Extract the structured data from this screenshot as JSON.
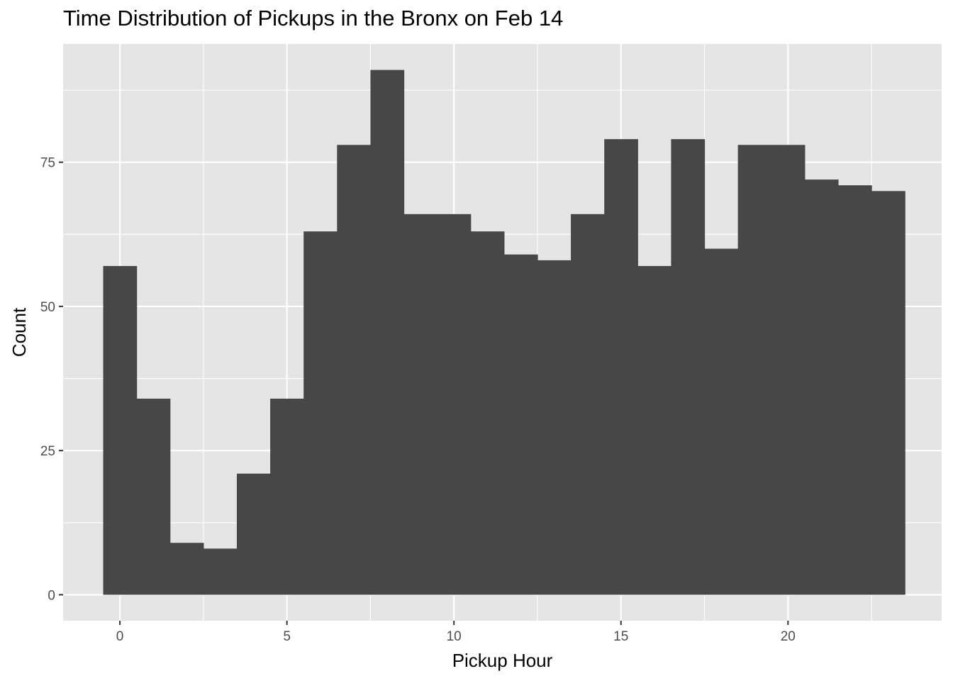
{
  "chart_data": {
    "type": "bar",
    "title": "Time Distribution of Pickups in the Bronx on Feb 14",
    "xlabel": "Pickup Hour",
    "ylabel": "Count",
    "x": [
      0,
      1,
      2,
      3,
      4,
      5,
      6,
      7,
      8,
      9,
      10,
      11,
      12,
      13,
      14,
      15,
      16,
      17,
      18,
      19,
      20,
      21,
      22,
      23
    ],
    "values": [
      57,
      34,
      9,
      8,
      21,
      34,
      63,
      78,
      91,
      66,
      66,
      63,
      59,
      58,
      66,
      79,
      57,
      79,
      60,
      78,
      78,
      72,
      71,
      70
    ],
    "xlim": [
      -1.7,
      24.6
    ],
    "ylim": [
      -4.5,
      95.5
    ],
    "x_ticks": [
      0,
      5,
      10,
      15,
      20
    ],
    "y_ticks": [
      0,
      25,
      50,
      75
    ],
    "x_tick_labels": [
      "0",
      "5",
      "10",
      "15",
      "20"
    ],
    "y_tick_labels": [
      "0",
      "25",
      "50",
      "75"
    ],
    "grid": true,
    "legend": "none",
    "colors": {
      "bar": "#474747",
      "panel_background": "#e5e5e5",
      "grid_line": "#ffffff",
      "tick_label": "#4d4d4d"
    }
  }
}
